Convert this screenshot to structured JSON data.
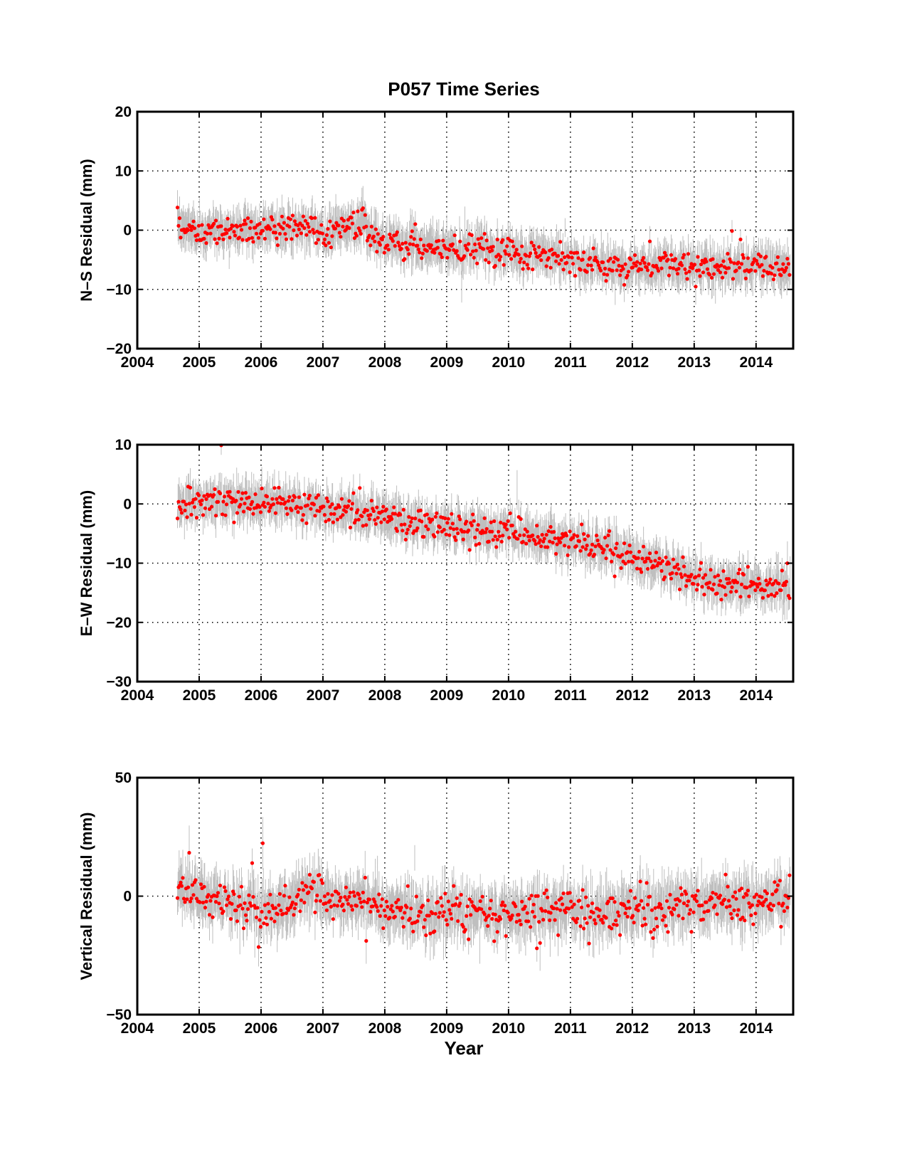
{
  "figure": {
    "title": "P057 Time Series",
    "xlabel": "Year"
  },
  "colors": {
    "point": "#ff0000",
    "error_bar": "#bfbfbf",
    "axis": "#000000",
    "grid": "#000000"
  },
  "chart_data": [
    {
      "type": "scatter",
      "ylabel": "N–S Residual (mm)",
      "xlim": [
        2004,
        2014.6
      ],
      "ylim": [
        -20,
        20
      ],
      "xticks": [
        2004,
        2005,
        2006,
        2007,
        2008,
        2009,
        2010,
        2011,
        2012,
        2013,
        2014
      ],
      "yticks": [
        -20,
        -10,
        0,
        10,
        20
      ],
      "ytick_labels": [
        "−20",
        "−10",
        "0",
        "10",
        "20"
      ],
      "grid": true,
      "series": [
        {
          "x": [
            2004.65,
            2004.8,
            2005.0,
            2005.2,
            2005.4,
            2005.6,
            2005.8,
            2006.0,
            2006.2,
            2006.4,
            2006.6,
            2006.8,
            2007.0,
            2007.2,
            2007.4,
            2007.6,
            2007.8,
            2008.0,
            2008.2,
            2008.4,
            2008.6,
            2008.8,
            2009.0,
            2009.2,
            2009.4,
            2009.6,
            2009.8,
            2010.0,
            2010.2,
            2010.4,
            2010.6,
            2010.8,
            2011.0,
            2011.2,
            2011.4,
            2011.6,
            2011.8,
            2012.0,
            2012.2,
            2012.4,
            2012.6,
            2012.8,
            2013.0,
            2013.2,
            2013.4,
            2013.6,
            2013.8,
            2014.0,
            2014.2,
            2014.4,
            2014.55
          ],
          "y": [
            0.5,
            0.3,
            0.0,
            0.2,
            -0.3,
            0.0,
            0.2,
            0.0,
            0.5,
            0.3,
            0.5,
            0.0,
            -0.2,
            0.3,
            0.8,
            1.5,
            -1.0,
            -2.0,
            -2.2,
            -2.5,
            -2.8,
            -2.5,
            -3.0,
            -3.0,
            -3.2,
            -3.0,
            -3.3,
            -3.5,
            -4.0,
            -4.3,
            -4.5,
            -4.5,
            -5.0,
            -5.5,
            -5.8,
            -6.0,
            -6.0,
            -6.2,
            -6.0,
            -6.0,
            -5.8,
            -6.0,
            -6.2,
            -6.3,
            -6.5,
            -6.3,
            -6.0,
            -6.0,
            -6.0,
            -6.0,
            -6.0
          ]
        }
      ]
    },
    {
      "type": "scatter",
      "ylabel": "E–W Residual (mm)",
      "xlim": [
        2004,
        2014.6
      ],
      "ylim": [
        -30,
        10
      ],
      "xticks": [
        2004,
        2005,
        2006,
        2007,
        2008,
        2009,
        2010,
        2011,
        2012,
        2013,
        2014
      ],
      "yticks": [
        -30,
        -20,
        -10,
        0,
        10
      ],
      "ytick_labels": [
        "−30",
        "−20",
        "−10",
        "0",
        "10"
      ],
      "grid": true,
      "series": [
        {
          "x": [
            2004.65,
            2004.8,
            2005.0,
            2005.2,
            2005.4,
            2005.6,
            2005.8,
            2006.0,
            2006.2,
            2006.4,
            2006.6,
            2006.8,
            2007.0,
            2007.2,
            2007.4,
            2007.6,
            2007.8,
            2008.0,
            2008.2,
            2008.4,
            2008.6,
            2008.8,
            2009.0,
            2009.2,
            2009.4,
            2009.6,
            2009.8,
            2010.0,
            2010.2,
            2010.4,
            2010.6,
            2010.8,
            2011.0,
            2011.2,
            2011.4,
            2011.6,
            2011.8,
            2012.0,
            2012.2,
            2012.4,
            2012.6,
            2012.8,
            2013.0,
            2013.2,
            2013.4,
            2013.6,
            2013.8,
            2014.0,
            2014.2,
            2014.4,
            2014.55
          ],
          "y": [
            0.0,
            0.3,
            0.5,
            0.5,
            0.5,
            0.8,
            0.5,
            0.3,
            0.0,
            0.0,
            -0.3,
            -0.5,
            -0.8,
            -1.0,
            -1.2,
            -1.5,
            -1.8,
            -2.0,
            -2.5,
            -3.0,
            -3.3,
            -3.5,
            -4.0,
            -4.0,
            -4.2,
            -4.5,
            -4.8,
            -5.0,
            -5.2,
            -5.5,
            -5.8,
            -6.0,
            -6.3,
            -6.8,
            -7.0,
            -7.3,
            -7.8,
            -8.5,
            -9.5,
            -10.3,
            -11.0,
            -11.8,
            -12.3,
            -12.8,
            -13.3,
            -13.5,
            -13.7,
            -13.8,
            -13.8,
            -14.0,
            -14.5
          ]
        }
      ]
    },
    {
      "type": "scatter",
      "ylabel": "Vertical Residual (mm)",
      "xlim": [
        2004,
        2014.6
      ],
      "ylim": [
        -50,
        50
      ],
      "xticks": [
        2004,
        2005,
        2006,
        2007,
        2008,
        2009,
        2010,
        2011,
        2012,
        2013,
        2014
      ],
      "yticks": [
        -50,
        0,
        50
      ],
      "ytick_labels": [
        "−50",
        "0",
        "50"
      ],
      "grid": true,
      "series": [
        {
          "x": [
            2004.65,
            2004.8,
            2005.0,
            2005.2,
            2005.4,
            2005.6,
            2005.8,
            2006.0,
            2006.2,
            2006.4,
            2006.6,
            2006.8,
            2007.0,
            2007.2,
            2007.4,
            2007.6,
            2007.8,
            2008.0,
            2008.2,
            2008.4,
            2008.6,
            2008.8,
            2009.0,
            2009.2,
            2009.4,
            2009.6,
            2009.8,
            2010.0,
            2010.2,
            2010.4,
            2010.6,
            2010.8,
            2011.0,
            2011.2,
            2011.4,
            2011.6,
            2011.8,
            2012.0,
            2012.2,
            2012.4,
            2012.6,
            2012.8,
            2013.0,
            2013.2,
            2013.4,
            2013.6,
            2013.8,
            2014.0,
            2014.2,
            2014.4,
            2014.55
          ],
          "y": [
            4.0,
            1.0,
            -1.0,
            -1.5,
            -2.0,
            -3.0,
            -4.0,
            -7.0,
            -6.0,
            -4.0,
            -1.0,
            2.0,
            0.0,
            -1.0,
            -2.0,
            -2.0,
            -3.0,
            -5.0,
            -6.0,
            -6.0,
            -7.0,
            -7.0,
            -7.0,
            -7.0,
            -7.0,
            -7.0,
            -7.0,
            -8.0,
            -7.0,
            -6.0,
            -6.0,
            -6.0,
            -6.0,
            -7.0,
            -7.0,
            -7.0,
            -6.0,
            -5.0,
            -5.0,
            -4.0,
            -4.0,
            -4.0,
            -4.0,
            -3.0,
            -3.0,
            -3.0,
            -2.0,
            -2.0,
            -1.0,
            0.0,
            1.0
          ]
        }
      ]
    }
  ]
}
